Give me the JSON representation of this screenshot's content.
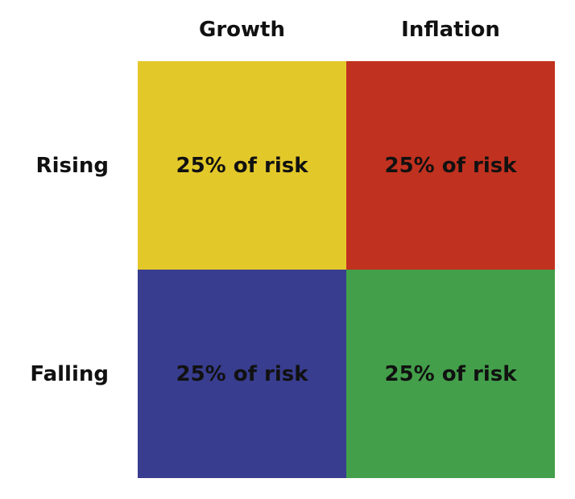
{
  "columns": [
    "Growth",
    "Inflation"
  ],
  "rows": [
    {
      "label": "Rising",
      "cells": [
        "25% of risk",
        "25% of risk"
      ]
    },
    {
      "label": "Falling",
      "cells": [
        "25% of risk",
        "25% of risk"
      ]
    }
  ]
}
